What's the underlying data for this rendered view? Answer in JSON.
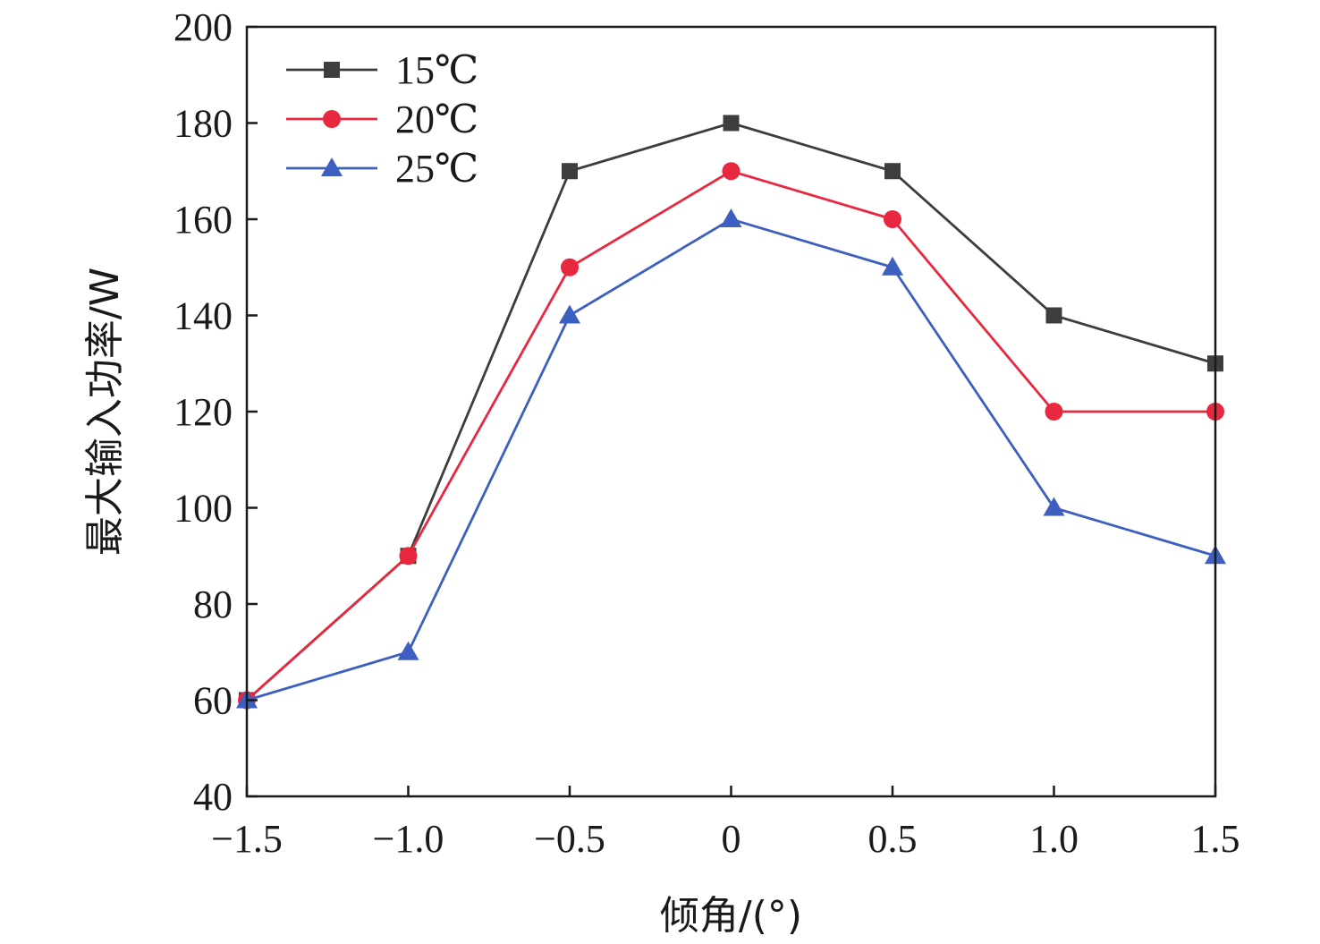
{
  "chart_data": {
    "type": "line",
    "xlabel": "倾角/(°)",
    "ylabel": "最大输入功率/W",
    "xlim": [
      -1.5,
      1.5
    ],
    "ylim": [
      40,
      200
    ],
    "x": [
      -1.5,
      -1.0,
      -0.5,
      0,
      0.5,
      1.0,
      1.5
    ],
    "x_tick_labels": [
      "−1.5",
      "−1.0",
      "−0.5",
      "0",
      "0.5",
      "1.0",
      "1.5"
    ],
    "y_ticks": [
      40,
      60,
      80,
      100,
      120,
      140,
      160,
      180,
      200
    ],
    "grid": false,
    "legend_position": "top-left",
    "series": [
      {
        "name": "15℃",
        "color": "#3d3d3d",
        "marker": "square",
        "values": [
          60,
          90,
          170,
          180,
          170,
          140,
          130
        ]
      },
      {
        "name": "20℃",
        "color": "#e8283f",
        "marker": "circle",
        "values": [
          60,
          90,
          150,
          170,
          160,
          120,
          120
        ]
      },
      {
        "name": "25℃",
        "color": "#3d5fbf",
        "marker": "triangle",
        "values": [
          60,
          70,
          140,
          160,
          150,
          100,
          90
        ]
      }
    ]
  }
}
